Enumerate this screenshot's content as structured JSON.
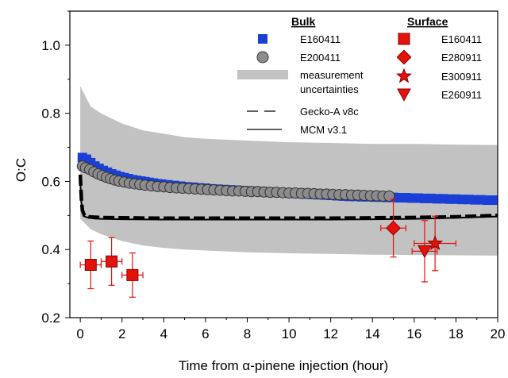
{
  "chart_data": {
    "type": "scatter",
    "xlabel": "Time from α-pinene injection (hour)",
    "ylabel": "O:C",
    "xlim": [
      -0.5,
      20
    ],
    "ylim": [
      0.2,
      1.1
    ],
    "x_ticks": [
      "0",
      "2",
      "4",
      "6",
      "8",
      "10",
      "12",
      "14",
      "16",
      "18",
      "20"
    ],
    "y_ticks": [
      "0.2",
      "0.4",
      "0.6",
      "0.8",
      "1.0"
    ],
    "grid": false,
    "legend_placement": "top-right",
    "legend": {
      "bulk_header": "Bulk",
      "surface_header": "Surface",
      "bulk_entries": [
        "E160411",
        "E200411",
        "measurement",
        "uncertainties",
        "Gecko-A v8c",
        "MCM v3.1"
      ],
      "surface_entries": [
        "E160411",
        "E280911",
        "E300911",
        "E260911"
      ]
    },
    "uncertainty_band": {
      "x": [
        0,
        0.5,
        1,
        2,
        3,
        4,
        5,
        6,
        8,
        10,
        12,
        14,
        16,
        18,
        20
      ],
      "upper": [
        0.88,
        0.82,
        0.8,
        0.77,
        0.75,
        0.74,
        0.73,
        0.725,
        0.72,
        0.715,
        0.713,
        0.71,
        0.71,
        0.708,
        0.707
      ],
      "lower": [
        0.49,
        0.46,
        0.445,
        0.425,
        0.412,
        0.405,
        0.4,
        0.397,
        0.392,
        0.389,
        0.387,
        0.385,
        0.384,
        0.383,
        0.382
      ]
    },
    "series": [
      {
        "name": "E160411",
        "kind": "bulk",
        "marker": "square",
        "color": "#1a3fd6",
        "x": [
          0.1,
          0.3,
          0.5,
          0.7,
          0.9,
          1.1,
          1.3,
          1.5,
          1.7,
          1.9,
          2.1,
          2.3,
          2.5,
          2.7,
          2.9,
          3.1,
          3.3,
          3.5,
          3.7,
          3.9,
          4.2,
          4.5,
          4.8,
          5.1,
          5.4,
          5.7,
          6.0,
          6.3,
          6.6,
          6.9,
          7.2,
          7.5,
          7.8,
          8.1,
          8.4,
          8.7,
          9.0,
          9.3,
          9.6,
          9.9,
          10.2,
          10.5,
          10.8,
          11.1,
          11.4,
          11.7,
          12.0,
          12.3,
          12.6,
          12.9,
          13.2,
          13.5,
          13.8,
          14.1,
          14.4,
          14.7,
          15.0,
          15.3,
          15.6,
          15.9,
          16.2,
          16.5,
          16.8,
          17.1,
          17.4,
          17.7,
          18.0,
          18.3,
          18.6,
          18.9,
          19.2,
          19.5,
          19.8
        ],
        "y": [
          0.67,
          0.665,
          0.655,
          0.645,
          0.638,
          0.632,
          0.627,
          0.622,
          0.618,
          0.614,
          0.611,
          0.608,
          0.605,
          0.603,
          0.601,
          0.599,
          0.597,
          0.595,
          0.593,
          0.592,
          0.59,
          0.588,
          0.586,
          0.584,
          0.583,
          0.581,
          0.58,
          0.578,
          0.577,
          0.576,
          0.575,
          0.574,
          0.573,
          0.572,
          0.571,
          0.57,
          0.569,
          0.568,
          0.567,
          0.566,
          0.565,
          0.564,
          0.563,
          0.562,
          0.561,
          0.56,
          0.559,
          0.558,
          0.557,
          0.556,
          0.556,
          0.555,
          0.555,
          0.554,
          0.554,
          0.553,
          0.553,
          0.552,
          0.552,
          0.551,
          0.551,
          0.55,
          0.55,
          0.549,
          0.549,
          0.548,
          0.548,
          0.547,
          0.547,
          0.546,
          0.546,
          0.545,
          0.545
        ]
      },
      {
        "name": "E200411",
        "kind": "bulk",
        "marker": "circle",
        "color": "#8c8c8c",
        "x": [
          0.1,
          0.25,
          0.45,
          0.65,
          0.85,
          1.05,
          1.25,
          1.45,
          1.65,
          1.85,
          2.1,
          2.35,
          2.6,
          2.85,
          3.1,
          3.4,
          3.7,
          4.0,
          4.3,
          4.6,
          4.9,
          5.2,
          5.5,
          5.8,
          6.1,
          6.4,
          6.7,
          7.0,
          7.3,
          7.6,
          7.9,
          8.2,
          8.5,
          8.8,
          9.1,
          9.4,
          9.7,
          10.0,
          10.3,
          10.6,
          10.9,
          11.2,
          11.5,
          11.8,
          12.1,
          12.4,
          12.7,
          13.0,
          13.3,
          13.6,
          13.9,
          14.2,
          14.5,
          14.8
        ],
        "y": [
          0.645,
          0.64,
          0.635,
          0.628,
          0.622,
          0.617,
          0.612,
          0.608,
          0.604,
          0.601,
          0.598,
          0.595,
          0.593,
          0.591,
          0.589,
          0.587,
          0.585,
          0.584,
          0.582,
          0.581,
          0.58,
          0.579,
          0.578,
          0.577,
          0.576,
          0.575,
          0.574,
          0.573,
          0.572,
          0.572,
          0.571,
          0.57,
          0.57,
          0.569,
          0.568,
          0.568,
          0.567,
          0.566,
          0.566,
          0.565,
          0.565,
          0.564,
          0.563,
          0.563,
          0.562,
          0.561,
          0.561,
          0.56,
          0.56,
          0.559,
          0.558,
          0.558,
          0.557,
          0.557
        ]
      },
      {
        "name": "E160411",
        "kind": "surface",
        "marker": "square",
        "color": "#e3120b",
        "x": [
          0.5,
          1.5,
          2.5
        ],
        "y": [
          0.355,
          0.365,
          0.325
        ],
        "xerr": [
          0.5,
          0.5,
          0.5
        ],
        "yerr": [
          0.07,
          0.07,
          0.065
        ]
      },
      {
        "name": "E280911",
        "kind": "surface",
        "marker": "diamond",
        "color": "#e3120b",
        "x": [
          15.0
        ],
        "y": [
          0.463
        ],
        "xerr": [
          0.6
        ],
        "yerr": [
          0.085
        ]
      },
      {
        "name": "E300911",
        "kind": "surface",
        "marker": "star",
        "color": "#e3120b",
        "x": [
          17.0
        ],
        "y": [
          0.418
        ],
        "xerr": [
          1.0
        ],
        "yerr": [
          0.08
        ]
      },
      {
        "name": "E260911",
        "kind": "surface",
        "marker": "triangle-down",
        "color": "#e3120b",
        "x": [
          16.5
        ],
        "y": [
          0.395
        ],
        "xerr": [
          0.6
        ],
        "yerr": [
          0.09
        ]
      }
    ],
    "models": [
      {
        "name": "Gecko-A v8c",
        "style": "dashed",
        "color": "#000000",
        "x": [
          0,
          0.05,
          0.1,
          0.2,
          0.4,
          0.7,
          1,
          2,
          4,
          6,
          8,
          10,
          12,
          14,
          16,
          18,
          20
        ],
        "y": [
          0.62,
          0.55,
          0.515,
          0.5,
          0.496,
          0.495,
          0.494,
          0.493,
          0.492,
          0.492,
          0.492,
          0.492,
          0.492,
          0.493,
          0.494,
          0.496,
          0.5
        ]
      },
      {
        "name": "MCM v3.1",
        "style": "solid",
        "color": "#000000",
        "x": [
          0,
          0.05,
          0.1,
          0.2,
          0.4,
          0.7,
          1,
          2,
          4,
          6,
          8,
          10,
          12,
          14,
          16,
          18,
          20
        ],
        "y": [
          0.6,
          0.54,
          0.51,
          0.497,
          0.493,
          0.491,
          0.49,
          0.489,
          0.488,
          0.488,
          0.488,
          0.488,
          0.488,
          0.489,
          0.49,
          0.493,
          0.497
        ]
      }
    ],
    "colors": {
      "band": "#c2c2c2",
      "bulk_blue": "#1a3fd6",
      "bulk_grey": "#8c8c8c",
      "surface_red": "#e3120b"
    }
  }
}
